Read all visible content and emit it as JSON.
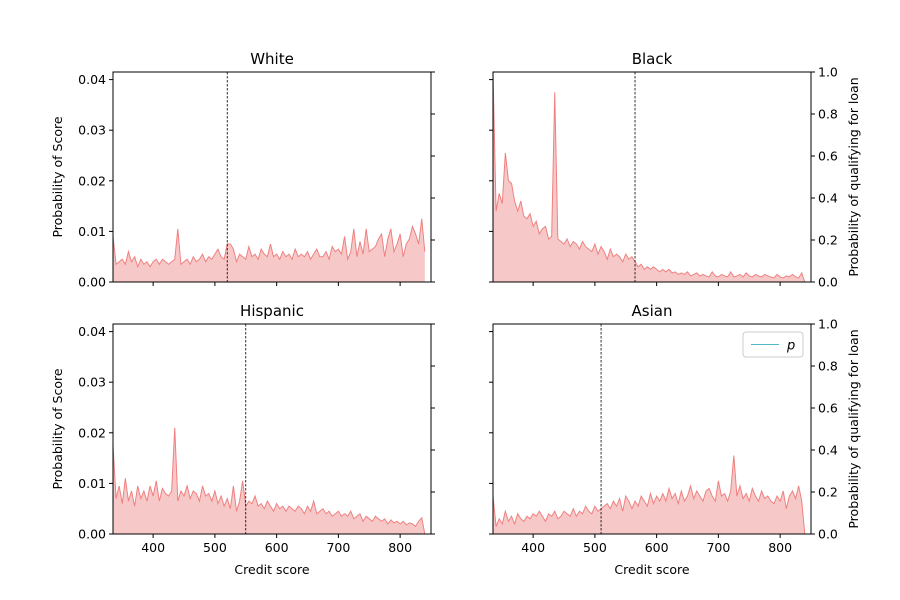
{
  "chart_data": [
    {
      "type": "area",
      "title": "White",
      "xlabel": "",
      "ylabel": "Probability of Score",
      "ylabel_right": "",
      "xlim": [
        335,
        850
      ],
      "ylim": [
        0,
        0.0415
      ],
      "y_ticks": [
        "0.00",
        "0.01",
        "0.02",
        "0.03",
        "0.04"
      ],
      "x_ticks": [],
      "threshold": 520,
      "series": [
        {
          "x": [
            335,
            340,
            345,
            350,
            355,
            360,
            365,
            370,
            375,
            380,
            385,
            390,
            395,
            400,
            405,
            410,
            415,
            420,
            425,
            430,
            435,
            440,
            445,
            450,
            455,
            460,
            465,
            470,
            475,
            480,
            485,
            490,
            495,
            500,
            505,
            510,
            515,
            520,
            525,
            530,
            535,
            540,
            545,
            550,
            555,
            560,
            565,
            570,
            575,
            580,
            585,
            590,
            595,
            600,
            605,
            610,
            615,
            620,
            625,
            630,
            635,
            640,
            645,
            650,
            655,
            660,
            665,
            670,
            675,
            680,
            685,
            690,
            695,
            700,
            705,
            710,
            715,
            720,
            725,
            730,
            735,
            740,
            745,
            750,
            755,
            760,
            765,
            770,
            775,
            780,
            785,
            790,
            795,
            800,
            805,
            810,
            815,
            820,
            825,
            830,
            835,
            840
          ],
          "values": [
            0.009,
            0.0035,
            0.004,
            0.0045,
            0.0035,
            0.006,
            0.004,
            0.005,
            0.003,
            0.0045,
            0.0035,
            0.004,
            0.003,
            0.004,
            0.0045,
            0.0035,
            0.0045,
            0.004,
            0.0035,
            0.004,
            0.0045,
            0.0105,
            0.0035,
            0.004,
            0.0045,
            0.0035,
            0.005,
            0.004,
            0.0045,
            0.0055,
            0.004,
            0.005,
            0.0045,
            0.0055,
            0.0065,
            0.005,
            0.0045,
            0.0075,
            0.0075,
            0.0065,
            0.004,
            0.0055,
            0.005,
            0.0045,
            0.007,
            0.005,
            0.0055,
            0.0045,
            0.0065,
            0.0055,
            0.005,
            0.0075,
            0.005,
            0.0055,
            0.0045,
            0.006,
            0.005,
            0.0055,
            0.0045,
            0.0065,
            0.005,
            0.0055,
            0.005,
            0.006,
            0.0045,
            0.0055,
            0.0065,
            0.005,
            0.005,
            0.006,
            0.0045,
            0.007,
            0.006,
            0.0065,
            0.0055,
            0.009,
            0.0045,
            0.006,
            0.0105,
            0.005,
            0.008,
            0.0055,
            0.0105,
            0.006,
            0.0065,
            0.007,
            0.0085,
            0.0095,
            0.005,
            0.0085,
            0.0105,
            0.006,
            0.0075,
            0.0095,
            0.005,
            0.0075,
            0.0085,
            0.011,
            0.0095,
            0.0075,
            0.0125,
            0.006
          ]
        }
      ]
    },
    {
      "type": "area",
      "title": "Black",
      "xlabel": "",
      "ylabel": "",
      "ylabel_right": "Probability of qualifying for loan",
      "xlim": [
        335,
        850
      ],
      "ylim": [
        0,
        0.0415
      ],
      "y2lim": [
        0,
        1.0
      ],
      "y2_ticks": [
        "0.0",
        "0.2",
        "0.4",
        "0.6",
        "0.8",
        "1.0"
      ],
      "x_ticks": [],
      "threshold": 565,
      "series": [
        {
          "x": [
            335,
            340,
            345,
            350,
            355,
            360,
            365,
            370,
            375,
            380,
            385,
            390,
            395,
            400,
            405,
            410,
            415,
            420,
            425,
            430,
            435,
            440,
            445,
            450,
            455,
            460,
            465,
            470,
            475,
            480,
            485,
            490,
            495,
            500,
            505,
            510,
            515,
            520,
            525,
            530,
            535,
            540,
            545,
            550,
            555,
            560,
            565,
            570,
            575,
            580,
            585,
            590,
            595,
            600,
            605,
            610,
            615,
            620,
            625,
            630,
            635,
            640,
            645,
            650,
            655,
            660,
            665,
            670,
            675,
            680,
            685,
            690,
            695,
            700,
            705,
            710,
            715,
            720,
            725,
            730,
            735,
            740,
            745,
            750,
            755,
            760,
            765,
            770,
            775,
            780,
            785,
            790,
            795,
            800,
            805,
            810,
            815,
            820,
            825,
            830,
            835,
            840
          ],
          "values": [
            0.0415,
            0.014,
            0.0175,
            0.0155,
            0.0255,
            0.02,
            0.0195,
            0.016,
            0.014,
            0.016,
            0.013,
            0.0125,
            0.0135,
            0.011,
            0.012,
            0.0095,
            0.0105,
            0.011,
            0.0085,
            0.009,
            0.0375,
            0.0085,
            0.008,
            0.0075,
            0.0085,
            0.007,
            0.008,
            0.0075,
            0.0065,
            0.008,
            0.007,
            0.0065,
            0.006,
            0.0075,
            0.0055,
            0.007,
            0.006,
            0.0045,
            0.0065,
            0.005,
            0.0055,
            0.005,
            0.004,
            0.0055,
            0.0045,
            0.005,
            0.004,
            0.003,
            0.0035,
            0.0025,
            0.003,
            0.0025,
            0.003,
            0.0025,
            0.002,
            0.0025,
            0.002,
            0.0025,
            0.0018,
            0.002,
            0.0015,
            0.0018,
            0.0015,
            0.002,
            0.0012,
            0.0015,
            0.0018,
            0.0012,
            0.0015,
            0.0012,
            0.001,
            0.002,
            0.0012,
            0.001,
            0.0015,
            0.0012,
            0.001,
            0.002,
            0.001,
            0.0012,
            0.0015,
            0.001,
            0.0018,
            0.0012,
            0.001,
            0.0015,
            0.0012,
            0.001,
            0.0015,
            0.0012,
            0.001,
            0.0008,
            0.0015,
            0.001,
            0.0008,
            0.0012,
            0.001,
            0.0015,
            0.001,
            0.0008,
            0.0018,
            0.0
          ]
        }
      ]
    },
    {
      "type": "area",
      "title": "Hispanic",
      "xlabel": "Credit score",
      "ylabel": "Probability of Score",
      "ylabel_right": "",
      "xlim": [
        335,
        850
      ],
      "ylim": [
        0,
        0.0415
      ],
      "y_ticks": [
        "0.00",
        "0.01",
        "0.02",
        "0.03",
        "0.04"
      ],
      "x_ticks": [
        "400",
        "500",
        "600",
        "700",
        "800"
      ],
      "threshold": 550,
      "series": [
        {
          "x": [
            335,
            340,
            345,
            350,
            355,
            360,
            365,
            370,
            375,
            380,
            385,
            390,
            395,
            400,
            405,
            410,
            415,
            420,
            425,
            430,
            435,
            440,
            445,
            450,
            455,
            460,
            465,
            470,
            475,
            480,
            485,
            490,
            495,
            500,
            505,
            510,
            515,
            520,
            525,
            530,
            535,
            540,
            545,
            550,
            555,
            560,
            565,
            570,
            575,
            580,
            585,
            590,
            595,
            600,
            605,
            610,
            615,
            620,
            625,
            630,
            635,
            640,
            645,
            650,
            655,
            660,
            665,
            670,
            675,
            680,
            685,
            690,
            695,
            700,
            705,
            710,
            715,
            720,
            725,
            730,
            735,
            740,
            745,
            750,
            755,
            760,
            765,
            770,
            775,
            780,
            785,
            790,
            795,
            800,
            805,
            810,
            815,
            820,
            825,
            830,
            835,
            840
          ],
          "values": [
            0.0175,
            0.007,
            0.0095,
            0.006,
            0.011,
            0.0065,
            0.0085,
            0.0055,
            0.0095,
            0.007,
            0.0085,
            0.0065,
            0.0095,
            0.0075,
            0.0105,
            0.0065,
            0.009,
            0.008,
            0.0075,
            0.0085,
            0.021,
            0.0065,
            0.0085,
            0.0075,
            0.0095,
            0.007,
            0.0085,
            0.008,
            0.0065,
            0.0095,
            0.0075,
            0.008,
            0.0065,
            0.0085,
            0.006,
            0.0075,
            0.0055,
            0.007,
            0.005,
            0.0095,
            0.0045,
            0.0065,
            0.0105,
            0.0055,
            0.0065,
            0.006,
            0.0075,
            0.0055,
            0.006,
            0.005,
            0.0065,
            0.0055,
            0.0045,
            0.006,
            0.005,
            0.0055,
            0.0045,
            0.0055,
            0.005,
            0.0045,
            0.0055,
            0.005,
            0.004,
            0.0055,
            0.0045,
            0.0065,
            0.004,
            0.0045,
            0.005,
            0.004,
            0.0045,
            0.0035,
            0.004,
            0.0045,
            0.0035,
            0.004,
            0.0035,
            0.0045,
            0.003,
            0.0035,
            0.004,
            0.0025,
            0.0035,
            0.003,
            0.0025,
            0.0035,
            0.003,
            0.0025,
            0.003,
            0.002,
            0.0028,
            0.0022,
            0.0025,
            0.002,
            0.0025,
            0.0018,
            0.0022,
            0.002,
            0.0015,
            0.0025,
            0.0032,
            0.0
          ]
        }
      ]
    },
    {
      "type": "area",
      "title": "Asian",
      "xlabel": "Credit score",
      "ylabel": "",
      "ylabel_right": "Probability of qualifying for loan",
      "xlim": [
        335,
        850
      ],
      "ylim": [
        0,
        0.0415
      ],
      "y2lim": [
        0,
        1.0
      ],
      "y2_ticks": [
        "0.0",
        "0.2",
        "0.4",
        "0.6",
        "0.8",
        "1.0"
      ],
      "x_ticks": [
        "400",
        "500",
        "600",
        "700",
        "800"
      ],
      "threshold": 510,
      "legend": {
        "entries": [
          "p"
        ],
        "position": "upper right"
      },
      "series": [
        {
          "x": [
            335,
            340,
            345,
            350,
            355,
            360,
            365,
            370,
            375,
            380,
            385,
            390,
            395,
            400,
            405,
            410,
            415,
            420,
            425,
            430,
            435,
            440,
            445,
            450,
            455,
            460,
            465,
            470,
            475,
            480,
            485,
            490,
            495,
            500,
            505,
            510,
            515,
            520,
            525,
            530,
            535,
            540,
            545,
            550,
            555,
            560,
            565,
            570,
            575,
            580,
            585,
            590,
            595,
            600,
            605,
            610,
            615,
            620,
            625,
            630,
            635,
            640,
            645,
            650,
            655,
            660,
            665,
            670,
            675,
            680,
            685,
            690,
            695,
            700,
            705,
            710,
            715,
            720,
            725,
            730,
            735,
            740,
            745,
            750,
            755,
            760,
            765,
            770,
            775,
            780,
            785,
            790,
            795,
            800,
            805,
            810,
            815,
            820,
            825,
            830,
            835,
            840
          ],
          "values": [
            0.0075,
            0.0015,
            0.003,
            0.002,
            0.0045,
            0.0025,
            0.0035,
            0.002,
            0.004,
            0.003,
            0.0025,
            0.0035,
            0.003,
            0.004,
            0.0035,
            0.0045,
            0.0035,
            0.0025,
            0.004,
            0.0035,
            0.0045,
            0.003,
            0.0035,
            0.0045,
            0.004,
            0.0035,
            0.005,
            0.0035,
            0.0045,
            0.004,
            0.0055,
            0.0045,
            0.004,
            0.0055,
            0.0045,
            0.005,
            0.0055,
            0.006,
            0.005,
            0.0065,
            0.0055,
            0.007,
            0.0045,
            0.0075,
            0.0065,
            0.005,
            0.0065,
            0.0055,
            0.0075,
            0.0065,
            0.0055,
            0.008,
            0.006,
            0.0075,
            0.0065,
            0.008,
            0.0065,
            0.009,
            0.007,
            0.008,
            0.006,
            0.0085,
            0.0065,
            0.0075,
            0.0095,
            0.007,
            0.0085,
            0.0075,
            0.0065,
            0.0085,
            0.009,
            0.0075,
            0.0065,
            0.0105,
            0.0075,
            0.008,
            0.0065,
            0.0085,
            0.0155,
            0.0075,
            0.0095,
            0.007,
            0.008,
            0.0065,
            0.009,
            0.0075,
            0.0065,
            0.0085,
            0.007,
            0.0075,
            0.0065,
            0.006,
            0.0075,
            0.0065,
            0.0085,
            0.005,
            0.0075,
            0.0085,
            0.007,
            0.0095,
            0.0065,
            0.0
          ]
        }
      ]
    }
  ]
}
